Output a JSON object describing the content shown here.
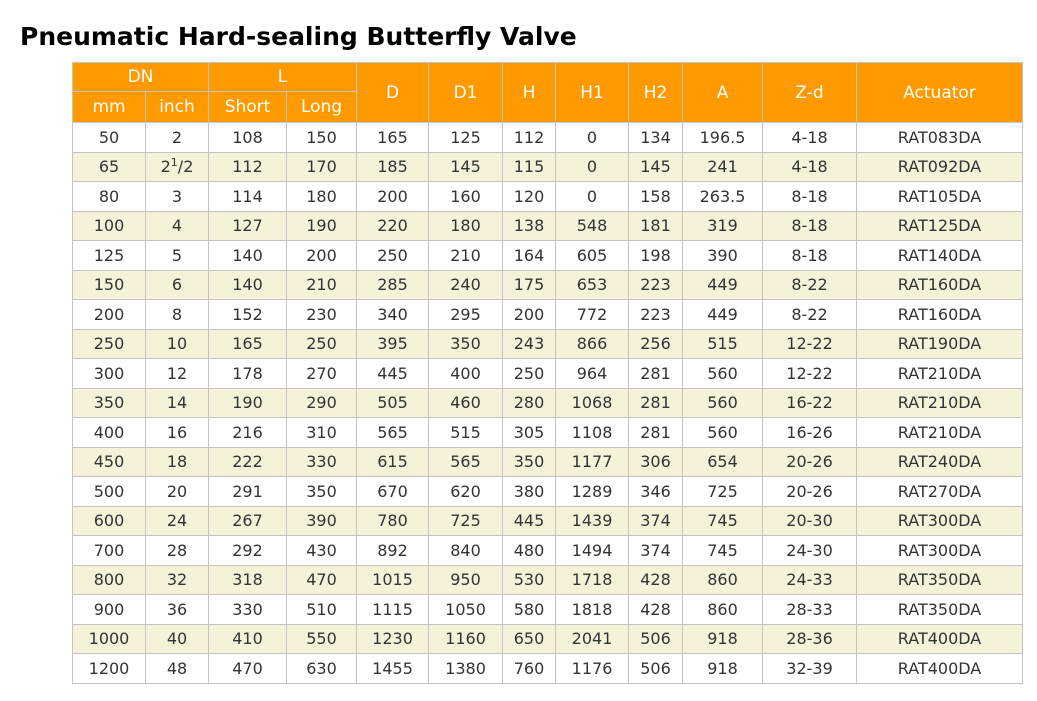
{
  "title": "Pneumatic Hard-sealing Butterfly Valve",
  "header": {
    "dn": "DN",
    "l": "L",
    "d": "D",
    "d1": "D1",
    "h": "H",
    "h1": "H1",
    "h2": "H2",
    "a": "A",
    "zd": "Z-d",
    "actuator": "Actuator",
    "mm": "mm",
    "inch": "inch",
    "short": "Short",
    "long": "Long"
  },
  "inch_fraction": {
    "whole": "2",
    "sup": "1",
    "rest": "/2"
  },
  "rows": [
    [
      "50",
      "2",
      "108",
      "150",
      "165",
      "125",
      "112",
      "0",
      "134",
      "196.5",
      "4-18",
      "RAT083DA"
    ],
    [
      "65",
      "",
      "112",
      "170",
      "185",
      "145",
      "115",
      "0",
      "145",
      "241",
      "4-18",
      "RAT092DA"
    ],
    [
      "80",
      "3",
      "114",
      "180",
      "200",
      "160",
      "120",
      "0",
      "158",
      "263.5",
      "8-18",
      "RAT105DA"
    ],
    [
      "100",
      "4",
      "127",
      "190",
      "220",
      "180",
      "138",
      "548",
      "181",
      "319",
      "8-18",
      "RAT125DA"
    ],
    [
      "125",
      "5",
      "140",
      "200",
      "250",
      "210",
      "164",
      "605",
      "198",
      "390",
      "8-18",
      "RAT140DA"
    ],
    [
      "150",
      "6",
      "140",
      "210",
      "285",
      "240",
      "175",
      "653",
      "223",
      "449",
      "8-22",
      "RAT160DA"
    ],
    [
      "200",
      "8",
      "152",
      "230",
      "340",
      "295",
      "200",
      "772",
      "223",
      "449",
      "8-22",
      "RAT160DA"
    ],
    [
      "250",
      "10",
      "165",
      "250",
      "395",
      "350",
      "243",
      "866",
      "256",
      "515",
      "12-22",
      "RAT190DA"
    ],
    [
      "300",
      "12",
      "178",
      "270",
      "445",
      "400",
      "250",
      "964",
      "281",
      "560",
      "12-22",
      "RAT210DA"
    ],
    [
      "350",
      "14",
      "190",
      "290",
      "505",
      "460",
      "280",
      "1068",
      "281",
      "560",
      "16-22",
      "RAT210DA"
    ],
    [
      "400",
      "16",
      "216",
      "310",
      "565",
      "515",
      "305",
      "1108",
      "281",
      "560",
      "16-26",
      "RAT210DA"
    ],
    [
      "450",
      "18",
      "222",
      "330",
      "615",
      "565",
      "350",
      "1177",
      "306",
      "654",
      "20-26",
      "RAT240DA"
    ],
    [
      "500",
      "20",
      "291",
      "350",
      "670",
      "620",
      "380",
      "1289",
      "346",
      "725",
      "20-26",
      "RAT270DA"
    ],
    [
      "600",
      "24",
      "267",
      "390",
      "780",
      "725",
      "445",
      "1439",
      "374",
      "745",
      "20-30",
      "RAT300DA"
    ],
    [
      "700",
      "28",
      "292",
      "430",
      "892",
      "840",
      "480",
      "1494",
      "374",
      "745",
      "24-30",
      "RAT300DA"
    ],
    [
      "800",
      "32",
      "318",
      "470",
      "1015",
      "950",
      "530",
      "1718",
      "428",
      "860",
      "24-33",
      "RAT350DA"
    ],
    [
      "900",
      "36",
      "330",
      "510",
      "1115",
      "1050",
      "580",
      "1818",
      "428",
      "860",
      "28-33",
      "RAT350DA"
    ],
    [
      "1000",
      "40",
      "410",
      "550",
      "1230",
      "1160",
      "650",
      "2041",
      "506",
      "918",
      "28-36",
      "RAT400DA"
    ],
    [
      "1200",
      "48",
      "470",
      "630",
      "1455",
      "1380",
      "760",
      "1176",
      "506",
      "918",
      "32-39",
      "RAT400DA"
    ]
  ],
  "colors": {
    "header_bg": "#ff9900",
    "header_text": "#ffffff",
    "stripe_bg": "#f5f2d9",
    "border": "#c4c4c4"
  }
}
